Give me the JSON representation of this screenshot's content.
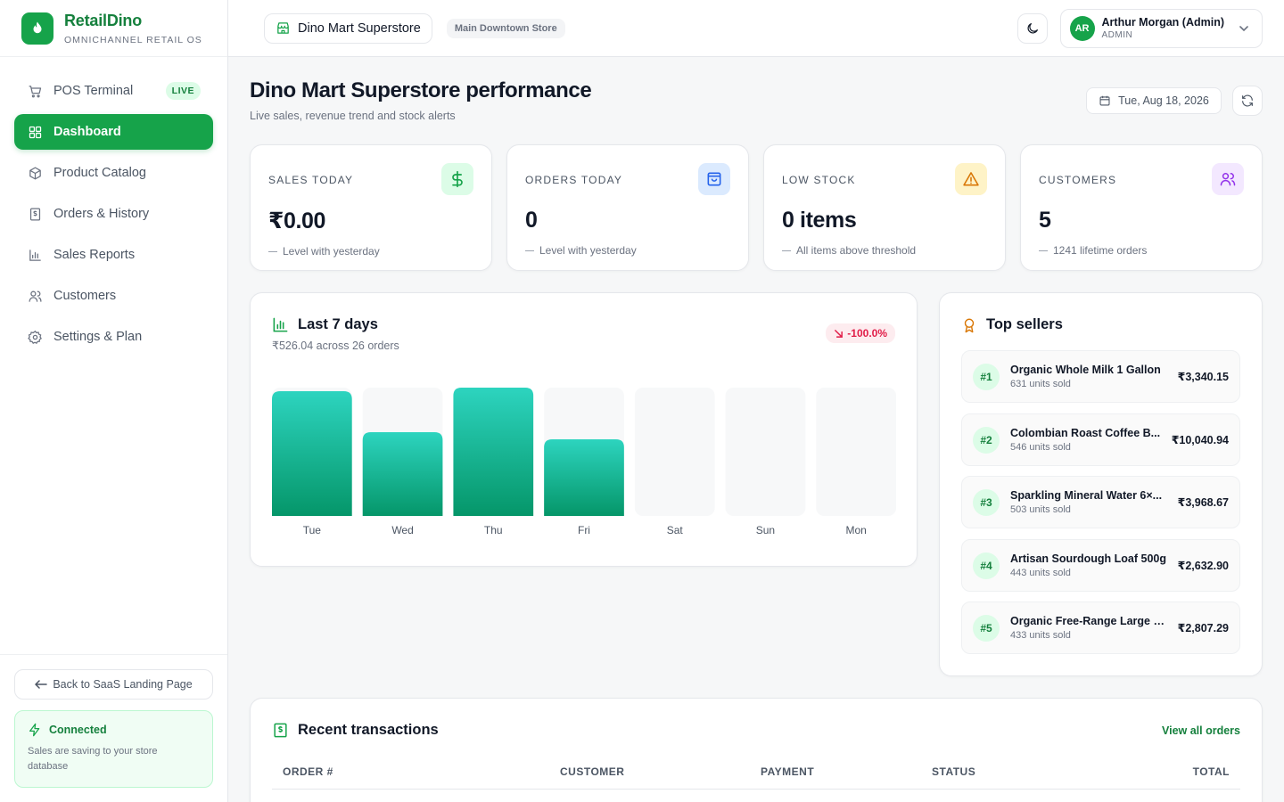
{
  "brand": {
    "name": "RetailDino",
    "tagline": "OMNICHANNEL RETAIL OS"
  },
  "nav": {
    "items": [
      {
        "label": "POS Terminal",
        "icon": "cart-icon",
        "badge": "LIVE"
      },
      {
        "label": "Dashboard",
        "icon": "grid-icon",
        "active": true
      },
      {
        "label": "Product Catalog",
        "icon": "box-icon"
      },
      {
        "label": "Orders & History",
        "icon": "receipt-icon"
      },
      {
        "label": "Sales Reports",
        "icon": "bar-chart-icon"
      },
      {
        "label": "Customers",
        "icon": "users-icon"
      },
      {
        "label": "Settings & Plan",
        "icon": "gear-icon"
      }
    ]
  },
  "sidebar_footer": {
    "back_label": "Back to SaaS Landing Page",
    "status_title": "Connected",
    "status_desc": "Sales are saving to your store database"
  },
  "topbar": {
    "store_name": "Dino Mart Superstore",
    "branch": "Main Downtown Store",
    "user_initials": "AR",
    "user_name": "Arthur Morgan (Admin)",
    "user_role": "ADMIN"
  },
  "header": {
    "title": "Dino Mart Superstore performance",
    "subtitle": "Live sales, revenue trend and stock alerts",
    "date": "Tue, Aug 18, 2026"
  },
  "stats": [
    {
      "label": "SALES TODAY",
      "value": "₹0.00",
      "foot": "Level with yesterday",
      "icon": "dollar-icon",
      "color": "#16a34a",
      "bg": "#dcfce7"
    },
    {
      "label": "ORDERS TODAY",
      "value": "0",
      "foot": "Level with yesterday",
      "icon": "bag-icon",
      "color": "#2563eb",
      "bg": "#dbeafe"
    },
    {
      "label": "LOW STOCK",
      "value": "0 items",
      "foot": "All items above threshold",
      "icon": "alert-icon",
      "color": "#d97706",
      "bg": "#fef3c7"
    },
    {
      "label": "CUSTOMERS",
      "value": "5",
      "foot": "1241 lifetime orders",
      "icon": "users-icon",
      "color": "#9333ea",
      "bg": "#f3e8ff"
    }
  ],
  "chart": {
    "title": "Last 7 days",
    "subtitle": "₹526.04 across 26 orders",
    "change": "-100.0%"
  },
  "chart_data": {
    "type": "bar",
    "categories": [
      "Tue",
      "Wed",
      "Thu",
      "Fri",
      "Sat",
      "Sun",
      "Mon"
    ],
    "values": [
      140,
      94,
      144,
      86,
      0,
      0,
      0
    ],
    "ylim": [
      0,
      144
    ],
    "title": "Last 7 days",
    "xlabel": "",
    "ylabel": "",
    "grid": false,
    "bar_color": "#10b981",
    "track_color": "#f7f8f9"
  },
  "top_sellers": {
    "title": "Top sellers",
    "items": [
      {
        "rank": "#1",
        "name": "Organic Whole Milk 1 Gallon",
        "units": "631 units sold",
        "revenue": "₹3,340.15"
      },
      {
        "rank": "#2",
        "name": "Colombian Roast Coffee B...",
        "units": "546 units sold",
        "revenue": "₹10,040.94"
      },
      {
        "rank": "#3",
        "name": "Sparkling Mineral Water 6×...",
        "units": "503 units sold",
        "revenue": "₹3,968.67"
      },
      {
        "rank": "#4",
        "name": "Artisan Sourdough Loaf 500g",
        "units": "443 units sold",
        "revenue": "₹2,632.90"
      },
      {
        "rank": "#5",
        "name": "Organic Free-Range Large B...",
        "units": "433 units sold",
        "revenue": "₹2,807.29"
      }
    ]
  },
  "transactions": {
    "title": "Recent transactions",
    "view_all": "View all orders",
    "columns": [
      "ORDER #",
      "CUSTOMER",
      "PAYMENT",
      "STATUS",
      "TOTAL"
    ]
  }
}
